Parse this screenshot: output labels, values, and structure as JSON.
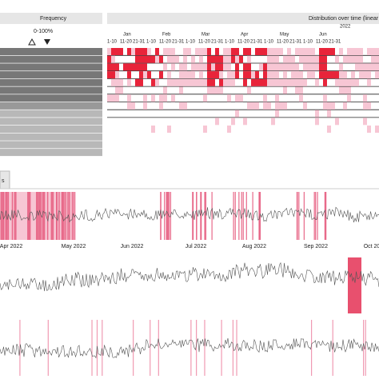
{
  "frequency_panel": {
    "title": "Frequency",
    "range": "0-100%"
  },
  "distribution_panel": {
    "title": "Distribution over time (linear",
    "year": "2022",
    "months": [
      "Jan",
      "Feb",
      "Mar",
      "Apr",
      "May",
      "Jun"
    ],
    "day_ranges": [
      "1-10",
      "11-20",
      "21-31"
    ]
  },
  "tab": {
    "label": "s"
  },
  "timeline": {
    "x_labels": [
      "Apr 2022",
      "May 2022",
      "Jun 2022",
      "Jul 2022",
      "Aug 2022",
      "Sep 2022",
      "Oct 20"
    ]
  }
}
